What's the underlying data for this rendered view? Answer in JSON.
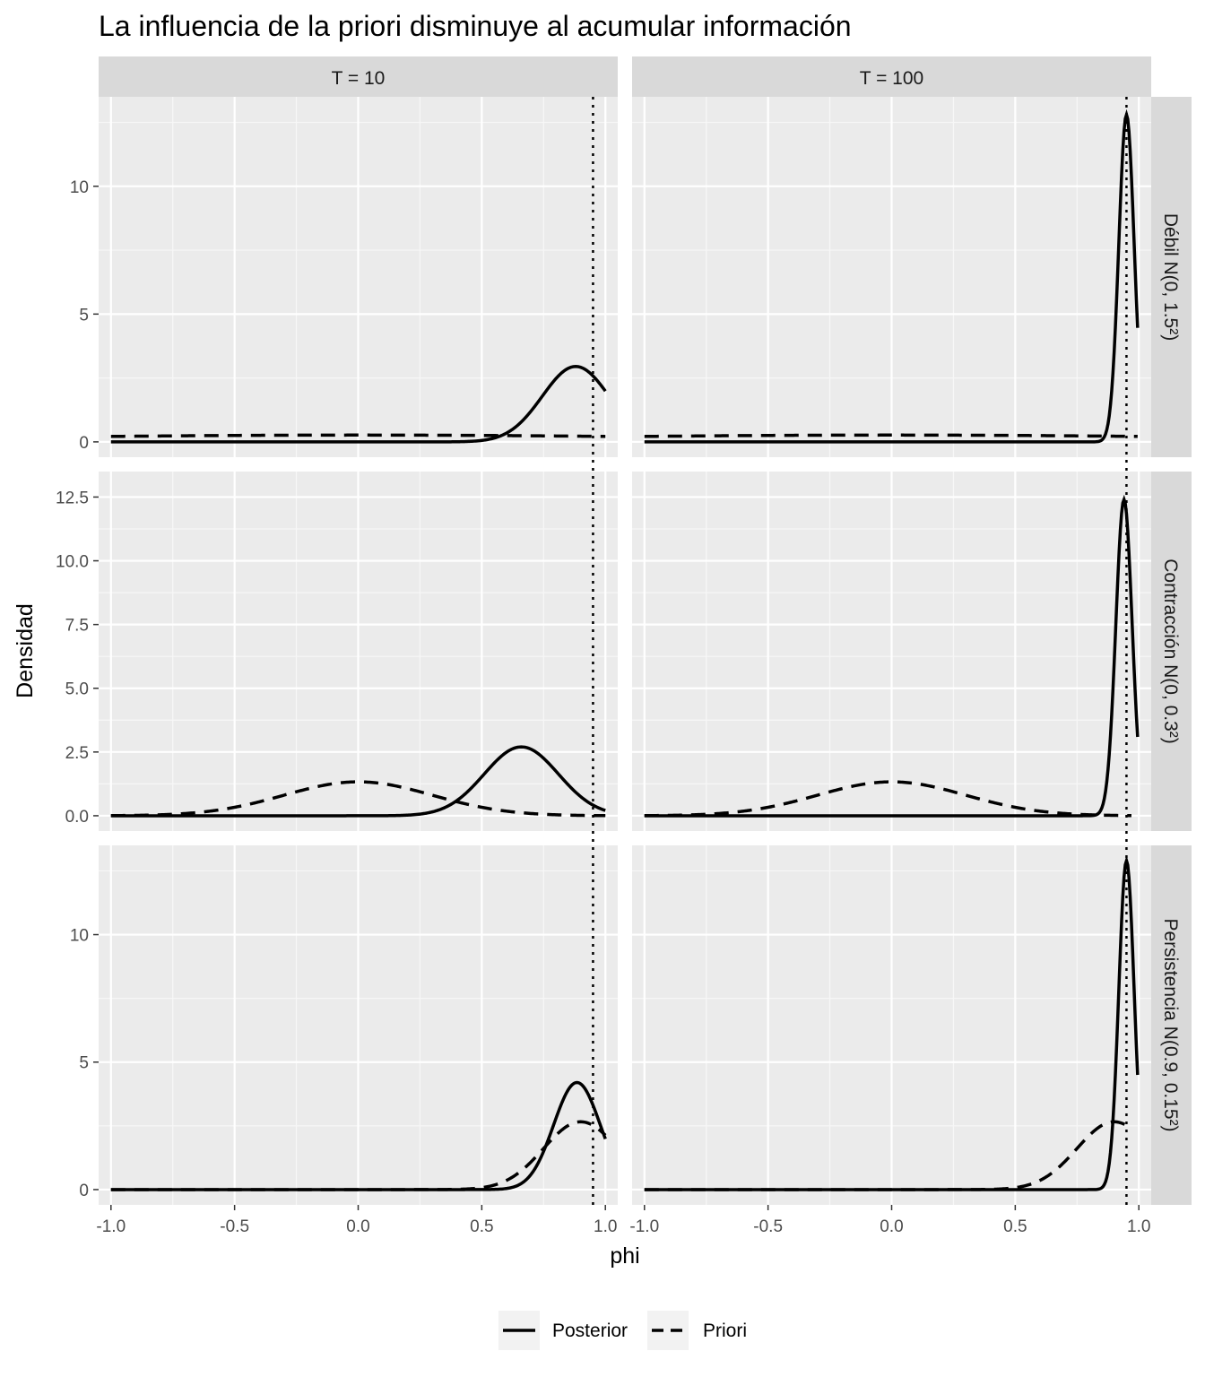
{
  "chart_data": {
    "type": "line",
    "title": "La influencia de la priori disminuye al acumular información",
    "xlabel": "phi",
    "ylabel": "Densidad",
    "xlim": [
      -1.05,
      1.05
    ],
    "xticks": [
      "-1.0",
      "-0.5",
      "0.0",
      "0.5",
      "1.0"
    ],
    "xtick_values": [
      -1.0,
      -0.5,
      0.0,
      0.5,
      1.0
    ],
    "grid": true,
    "legend_position": "bottom",
    "true_phi": 0.95,
    "columns": [
      {
        "label": "T = 10",
        "T": 10
      },
      {
        "label": "T = 100",
        "T": 100
      }
    ],
    "rows": [
      {
        "label": "Débil N(0, 1.5²)",
        "prior_mean": 0.0,
        "prior_sd": 1.5,
        "ylim": [
          -0.6,
          13.5
        ],
        "yticks": [
          "0",
          "5",
          "10"
        ],
        "ytick_values": [
          0,
          5,
          10
        ]
      },
      {
        "label": "Contracción N(0, 0.3²)",
        "prior_mean": 0.0,
        "prior_sd": 0.3,
        "ylim": [
          -0.6,
          13.5
        ],
        "yticks": [
          "0.0",
          "2.5",
          "5.0",
          "7.5",
          "10.0",
          "12.5"
        ],
        "ytick_values": [
          0,
          2.5,
          5,
          7.5,
          10,
          12.5
        ]
      },
      {
        "label": "Persistencia N(0.9, 0.15²)",
        "prior_mean": 0.9,
        "prior_sd": 0.15,
        "ylim": [
          -0.6,
          13.5
        ],
        "yticks": [
          "0",
          "5",
          "10"
        ],
        "ytick_values": [
          0,
          5,
          10
        ]
      }
    ],
    "series": [
      {
        "name": "Posterior",
        "linetype": "solid"
      },
      {
        "name": "Priori",
        "linetype": "dashed"
      }
    ],
    "panels": [
      {
        "row": 0,
        "col": 0,
        "posterior": {
          "mean": 0.88,
          "sd": 0.135,
          "peak": 2.95,
          "xmax": 1.0
        },
        "prior_xmax": 1.0
      },
      {
        "row": 0,
        "col": 1,
        "posterior": {
          "mean": 0.95,
          "sd": 0.031,
          "peak": 12.8,
          "xmax": 0.995
        },
        "prior_xmax": 0.995
      },
      {
        "row": 1,
        "col": 0,
        "posterior": {
          "mean": 0.66,
          "sd": 0.15,
          "peak": 2.7,
          "xmax": 1.0
        },
        "prior_xmax": 1.0
      },
      {
        "row": 1,
        "col": 1,
        "posterior": {
          "mean": 0.94,
          "sd": 0.033,
          "peak": 12.4,
          "xmax": 0.995
        },
        "prior_xmax": 0.97
      },
      {
        "row": 2,
        "col": 0,
        "posterior": {
          "mean": 0.885,
          "sd": 0.094,
          "peak": 4.2,
          "xmax": 1.0
        },
        "prior_xmax": 1.0
      },
      {
        "row": 2,
        "col": 1,
        "posterior": {
          "mean": 0.95,
          "sd": 0.031,
          "peak": 12.9,
          "xmax": 0.995
        },
        "prior_xmax": 0.97
      }
    ]
  }
}
